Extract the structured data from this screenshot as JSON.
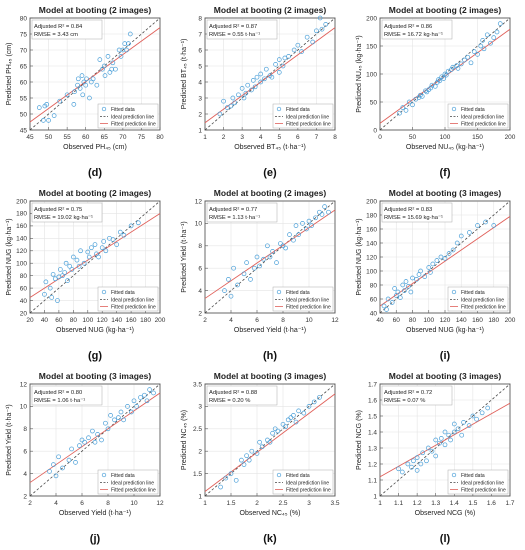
{
  "figure": {
    "panels": [
      {
        "letter": "(d)",
        "title": "Model at booting (2 images)",
        "stat1": "Adjusted R² = 0.84",
        "stat2": "RMSE = 3.43 cm",
        "xlabel": "Observed PH₄₅ (cm)",
        "ylabel": "Predicted PH₄₅ (cm)"
      },
      {
        "letter": "(e)",
        "title": "Model at booting (2 images)",
        "stat1": "Adjusted R² = 0.87",
        "stat2": "RMSE = 0.55 t·ha⁻¹",
        "xlabel": "Observed BT₄₅ (t·ha⁻¹)",
        "ylabel": "Predicted BT₄₅ (t·ha⁻¹)"
      },
      {
        "letter": "(f)",
        "title": "Model at booting (2 images)",
        "stat1": "Adjusted R² = 0.86",
        "stat2": "RMSE = 16.72 kg·ha⁻¹",
        "xlabel": "Observed NU₄₅ (kg·ha⁻¹)",
        "ylabel": "Predicted NU₄₅ (kg·ha⁻¹)"
      },
      {
        "letter": "(g)",
        "title": "Model at booting (2 images)",
        "stat1": "Adjusted R² = 0.75",
        "stat2": "RMSE = 19.02 kg·ha⁻¹",
        "xlabel": "Observed NUG (kg·ha⁻¹)",
        "ylabel": "Predicted NUG (kg·ha⁻¹)"
      },
      {
        "letter": "(h)",
        "title": "Model at booting (2 images)",
        "stat1": "Adjusted R² = 0.77",
        "stat2": "RMSE = 1.13 t·ha⁻¹",
        "xlabel": "Observed Yield (t·ha⁻¹)",
        "ylabel": "Predicted Yield (t·ha⁻¹)"
      },
      {
        "letter": "(i)",
        "title": "Model at booting (3 images)",
        "stat1": "Adjusted R² = 0.83",
        "stat2": "RMSE = 15.69 kg·ha⁻¹",
        "xlabel": "Observed NUG (kg·ha⁻¹)",
        "ylabel": "Predicted NUG (kg·ha⁻¹)"
      },
      {
        "letter": "(j)",
        "title": "Model at booting (3 images)",
        "stat1": "Adjusted R² = 0.80",
        "stat2": "RMSE = 1.06 t·ha⁻¹",
        "xlabel": "Observed Yield (t·ha⁻¹)",
        "ylabel": "Predicted Yield (t·ha⁻¹)"
      },
      {
        "letter": "(k)",
        "title": "Model at booting (3 images)",
        "stat1": "Adjusted R² = 0.88",
        "stat2": "RMSE = 0.20 %",
        "xlabel": "Observed NC₄₅ (%)",
        "ylabel": "Predicted NC₄₅ (%)"
      },
      {
        "letter": "(l)",
        "title": "Model at booting (3 images)",
        "stat1": "Adjusted R² = 0.72",
        "stat2": "RMSE = 0.07 %",
        "xlabel": "Observed NCG (%)",
        "ylabel": "Predicted NCG (%)"
      }
    ]
  },
  "chart_data": [
    {
      "type": "scatter",
      "title": "Model at booting (2 images)",
      "xlabel": "Observed PH45 (cm)",
      "ylabel": "Predicted PH45 (cm)",
      "xlim": [
        45,
        80
      ],
      "ylim": [
        45,
        80
      ],
      "xticks": [
        45,
        50,
        55,
        60,
        65,
        70,
        75,
        80
      ],
      "yticks": [
        45,
        50,
        55,
        60,
        65,
        70,
        75,
        80
      ],
      "fit_line": [
        [
          45,
          47.5
        ],
        [
          80,
          77
        ]
      ],
      "legend": [
        "Fitted data",
        "Ideal prediction line",
        "Fitted prediction line"
      ],
      "legend_position": "bottom-right",
      "x": [
        47.5,
        48.6,
        49,
        49.5,
        50,
        51.5,
        53,
        55,
        56.8,
        57,
        57.8,
        58,
        58.5,
        59,
        59.2,
        59.5,
        60,
        60.2,
        61,
        61.5,
        62,
        63,
        63.8,
        64.5,
        65,
        65.2,
        66,
        66.5,
        67,
        67.3,
        68,
        69,
        69.5,
        70,
        70.5,
        71,
        71.5,
        72
      ],
      "y": [
        52,
        48,
        52.5,
        53,
        48,
        49.5,
        54,
        56,
        53,
        57,
        59,
        61,
        58,
        62,
        56,
        60,
        59,
        61,
        55,
        60,
        61,
        59,
        67,
        64,
        65,
        62,
        68,
        63,
        64,
        66,
        64,
        70,
        68,
        70,
        72,
        70,
        72,
        75
      ]
    },
    {
      "type": "scatter",
      "title": "Model at booting (2 images)",
      "xlabel": "Observed BT45 (t·ha-1)",
      "ylabel": "Predicted BT45 (t·ha-1)",
      "xlim": [
        1,
        8
      ],
      "ylim": [
        1,
        8
      ],
      "xticks": [
        1,
        2,
        3,
        4,
        5,
        6,
        7,
        8
      ],
      "yticks": [
        1,
        2,
        3,
        4,
        5,
        6,
        7,
        8
      ],
      "fit_line": [
        [
          1,
          1.45
        ],
        [
          8,
          7.4
        ]
      ],
      "legend": [
        "Fitted data",
        "Ideal prediction line",
        "Fitted prediction line"
      ],
      "legend_position": "bottom-right",
      "x": [
        1.8,
        2,
        2.2,
        2.4,
        2.5,
        2.6,
        2.8,
        3,
        3.1,
        3.2,
        3.3,
        3.5,
        3.6,
        3.7,
        3.8,
        4,
        4,
        4.2,
        4.3,
        4.5,
        4.6,
        4.8,
        5,
        5,
        5.2,
        5.3,
        5.5,
        5.8,
        6,
        6.2,
        6.5,
        6.8,
        7,
        7.2,
        7.3,
        7.5
      ],
      "y": [
        2,
        2.8,
        2.4,
        2.5,
        3,
        2.7,
        3.2,
        3.6,
        3,
        3.3,
        3.8,
        3.5,
        4.1,
        3.7,
        4.3,
        4,
        4.5,
        4.2,
        4.8,
        4.4,
        4.3,
        5.1,
        4.6,
        5.4,
        5,
        5.5,
        5.6,
        6,
        6.3,
        5.9,
        6.8,
        6.5,
        7.2,
        8,
        7.3,
        7.6
      ]
    },
    {
      "type": "scatter",
      "title": "Model at booting (2 images)",
      "xlabel": "Observed NU45 (kg·ha-1)",
      "ylabel": "Predicted NU45 (kg·ha-1)",
      "xlim": [
        0,
        200
      ],
      "ylim": [
        0,
        200
      ],
      "xticks": [
        0,
        50,
        100,
        150,
        200
      ],
      "yticks": [
        0,
        50,
        100,
        150,
        200
      ],
      "fit_line": [
        [
          0,
          12
        ],
        [
          200,
          180
        ]
      ],
      "legend": [
        "Fitted data",
        "Ideal prediction line",
        "Fitted prediction line"
      ],
      "legend_position": "bottom-right",
      "x": [
        30,
        35,
        40,
        45,
        50,
        55,
        60,
        62,
        65,
        70,
        72,
        75,
        78,
        80,
        85,
        88,
        90,
        92,
        95,
        98,
        100,
        102,
        105,
        110,
        112,
        118,
        120,
        125,
        130,
        135,
        140,
        145,
        150,
        155,
        158,
        160,
        165,
        170,
        175,
        180,
        185
      ],
      "y": [
        30,
        40,
        35,
        50,
        45,
        55,
        58,
        62,
        60,
        70,
        68,
        72,
        75,
        80,
        78,
        85,
        90,
        88,
        95,
        92,
        100,
        98,
        105,
        108,
        112,
        115,
        110,
        118,
        125,
        130,
        120,
        140,
        135,
        150,
        160,
        145,
        170,
        155,
        165,
        175,
        190
      ]
    },
    {
      "type": "scatter",
      "title": "Model at booting (2 images)",
      "xlabel": "Observed NUG (kg·ha-1)",
      "ylabel": "Predicted NUG (kg·ha-1)",
      "xlim": [
        20,
        200
      ],
      "ylim": [
        20,
        200
      ],
      "xticks": [
        20,
        40,
        60,
        80,
        100,
        120,
        140,
        160,
        180,
        200
      ],
      "yticks": [
        20,
        40,
        60,
        80,
        100,
        120,
        140,
        160,
        180,
        200
      ],
      "fit_line": [
        [
          20,
          45
        ],
        [
          200,
          180
        ]
      ],
      "legend": [
        "Fitted data",
        "Ideal prediction line",
        "Fitted prediction line"
      ],
      "legend_position": "bottom-right",
      "x": [
        40,
        42,
        48,
        50,
        52,
        55,
        58,
        60,
        62,
        65,
        68,
        70,
        72,
        75,
        78,
        80,
        85,
        88,
        90,
        95,
        100,
        102,
        105,
        110,
        112,
        115,
        120,
        122,
        125,
        130,
        135,
        140,
        145,
        150,
        160,
        170
      ],
      "y": [
        50,
        70,
        60,
        45,
        82,
        75,
        40,
        78,
        90,
        80,
        85,
        100,
        72,
        95,
        90,
        110,
        105,
        95,
        120,
        100,
        118,
        110,
        125,
        130,
        115,
        110,
        125,
        135,
        120,
        140,
        138,
        130,
        150,
        145,
        160,
        165
      ]
    },
    {
      "type": "scatter",
      "title": "Model at booting (2 images)",
      "xlabel": "Observed Yield (t·ha-1)",
      "ylabel": "Predicted Yield (t·ha-1)",
      "xlim": [
        2,
        12
      ],
      "ylim": [
        2,
        12
      ],
      "xticks": [
        2,
        4,
        6,
        8,
        10,
        12
      ],
      "yticks": [
        2,
        4,
        6,
        8,
        10,
        12
      ],
      "fit_line": [
        [
          2,
          3.3
        ],
        [
          12,
          11.2
        ]
      ],
      "legend": [
        "Fitted data",
        "Ideal prediction line",
        "Fitted prediction line"
      ],
      "legend_position": "bottom-right",
      "x": [
        3.5,
        3.8,
        4,
        4.2,
        4.5,
        5,
        5.2,
        5.5,
        5.8,
        6,
        6.2,
        6.5,
        6.8,
        7,
        7.2,
        7.5,
        7.8,
        8,
        8.2,
        8.5,
        8.8,
        9,
        9.2,
        9.5,
        9.8,
        10,
        10.2,
        10.5,
        10.8,
        11,
        11.2,
        11.5
      ],
      "y": [
        4,
        5,
        3.5,
        6,
        4.5,
        5.5,
        6.5,
        5,
        6,
        7,
        6.2,
        6.8,
        8,
        7,
        7.5,
        6.5,
        8.2,
        8,
        7.8,
        9,
        8.5,
        9.8,
        9,
        10,
        9.5,
        10.2,
        9.8,
        10.5,
        11,
        10.8,
        11.5,
        11
      ]
    },
    {
      "type": "scatter",
      "title": "Model at booting (3 images)",
      "xlabel": "Observed NUG (kg·ha-1)",
      "ylabel": "Predicted NUG (kg·ha-1)",
      "xlim": [
        40,
        200
      ],
      "ylim": [
        40,
        200
      ],
      "xticks": [
        40,
        60,
        80,
        100,
        120,
        140,
        160,
        180,
        200
      ],
      "yticks": [
        40,
        60,
        80,
        100,
        120,
        140,
        160,
        180,
        200
      ],
      "fit_line": [
        [
          40,
          50
        ],
        [
          200,
          178
        ]
      ],
      "legend": [
        "Fitted data",
        "Ideal prediction line",
        "Fitted prediction line"
      ],
      "legend_position": "bottom-right",
      "x": [
        45,
        48,
        50,
        55,
        58,
        60,
        62,
        65,
        68,
        70,
        72,
        75,
        78,
        80,
        85,
        88,
        90,
        95,
        100,
        102,
        105,
        110,
        115,
        120,
        125,
        130,
        135,
        140,
        150,
        160,
        170,
        180
      ],
      "y": [
        50,
        45,
        60,
        55,
        75,
        65,
        70,
        62,
        80,
        72,
        85,
        78,
        70,
        90,
        88,
        95,
        100,
        92,
        105,
        98,
        110,
        115,
        120,
        118,
        125,
        130,
        140,
        150,
        155,
        165,
        170,
        165
      ]
    },
    {
      "type": "scatter",
      "title": "Model at booting (3 images)",
      "xlabel": "Observed Yield (t·ha-1)",
      "ylabel": "Predicted Yield (t·ha-1)",
      "xlim": [
        2,
        12
      ],
      "ylim": [
        2,
        12
      ],
      "xticks": [
        2,
        4,
        6,
        8,
        10,
        12
      ],
      "yticks": [
        2,
        4,
        6,
        8,
        10,
        12
      ],
      "fit_line": [
        [
          2,
          3.2
        ],
        [
          12,
          11.2
        ]
      ],
      "legend": [
        "Fitted data",
        "Ideal prediction line",
        "Fitted prediction line"
      ],
      "legend_position": "bottom-right",
      "x": [
        3.5,
        3.8,
        4,
        4.2,
        4.5,
        5,
        5.2,
        5.5,
        5.8,
        6,
        6.2,
        6.5,
        6.8,
        7,
        7.2,
        7.5,
        7.8,
        8,
        8.2,
        8.5,
        8.8,
        9,
        9.2,
        9.5,
        9.8,
        10,
        10.2,
        10.5,
        10.8,
        11,
        11.2,
        11.5
      ],
      "y": [
        4.2,
        4.8,
        3.8,
        5.5,
        4.5,
        5.2,
        6.2,
        5,
        6.5,
        7,
        6.8,
        7.2,
        7.8,
        6.8,
        7.5,
        7,
        8.5,
        8,
        9.2,
        8.8,
        9,
        9.5,
        8.8,
        10,
        9.5,
        10.5,
        10,
        10.8,
        11,
        10.5,
        11.5,
        11.2
      ]
    },
    {
      "type": "scatter",
      "title": "Model at booting (3 images)",
      "xlabel": "Observed NC45 (%)",
      "ylabel": "Predicted NC45 (%)",
      "xlim": [
        1,
        3.5
      ],
      "ylim": [
        1,
        3.5
      ],
      "xticks": [
        1,
        1.5,
        2,
        2.5,
        3,
        3.5
      ],
      "yticks": [
        1,
        1.5,
        2,
        2.5,
        3,
        3.5
      ],
      "fit_line": [
        [
          1,
          1.1
        ],
        [
          3.5,
          3.28
        ]
      ],
      "legend": [
        "Fitted data",
        "Ideal prediction line",
        "Fitted prediction line"
      ],
      "legend_position": "bottom-right",
      "x": [
        1.3,
        1.4,
        1.5,
        1.6,
        1.7,
        1.75,
        1.8,
        1.85,
        1.9,
        2,
        2.05,
        2.1,
        2.2,
        2.25,
        2.3,
        2.35,
        2.4,
        2.5,
        2.55,
        2.6,
        2.65,
        2.7,
        2.75,
        2.8,
        2.9,
        3,
        3.1,
        3.2
      ],
      "y": [
        1.2,
        1.4,
        1.5,
        1.35,
        1.8,
        1.7,
        1.9,
        1.8,
        2,
        1.95,
        2.2,
        2.1,
        2.25,
        2.2,
        2.4,
        2.5,
        2.45,
        2.6,
        2.55,
        2.7,
        2.75,
        2.8,
        2.65,
        2.9,
        2.85,
        3,
        3.1,
        3.2
      ]
    },
    {
      "type": "scatter",
      "title": "Model at booting (3 images)",
      "xlabel": "Observed NCG (%)",
      "ylabel": "Predicted NCG (%)",
      "xlim": [
        1,
        1.7
      ],
      "ylim": [
        1,
        1.7
      ],
      "xticks": [
        1,
        1.1,
        1.2,
        1.3,
        1.4,
        1.5,
        1.6,
        1.7
      ],
      "yticks": [
        1,
        1.1,
        1.2,
        1.3,
        1.4,
        1.5,
        1.6,
        1.7
      ],
      "fit_line": [
        [
          1,
          1.12
        ],
        [
          1.7,
          1.58
        ]
      ],
      "legend": [
        "Fitted data",
        "Ideal prediction line",
        "Fitted prediction line"
      ],
      "legend_position": "bottom-right",
      "x": [
        1.1,
        1.12,
        1.15,
        1.17,
        1.18,
        1.2,
        1.2,
        1.22,
        1.23,
        1.25,
        1.26,
        1.28,
        1.3,
        1.3,
        1.32,
        1.33,
        1.35,
        1.35,
        1.37,
        1.38,
        1.4,
        1.4,
        1.42,
        1.44,
        1.45,
        1.48,
        1.5,
        1.52,
        1.55,
        1.58
      ],
      "y": [
        1.17,
        1.15,
        1.2,
        1.18,
        1.22,
        1.16,
        1.24,
        1.2,
        1.27,
        1.22,
        1.3,
        1.28,
        1.35,
        1.25,
        1.33,
        1.36,
        1.32,
        1.4,
        1.38,
        1.35,
        1.4,
        1.45,
        1.42,
        1.38,
        1.46,
        1.44,
        1.5,
        1.48,
        1.52,
        1.55
      ]
    }
  ]
}
